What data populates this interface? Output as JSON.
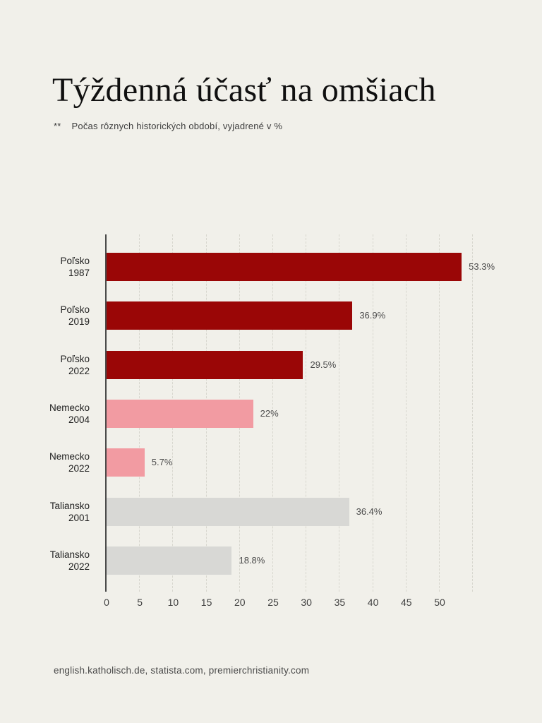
{
  "page": {
    "background": "#f1f0ea",
    "title": "Týždenná účasť na omšiach",
    "footnote_marker": "**",
    "footnote_text": "Počas rôznych historických období, vyjadrené v %",
    "sources": "english.katholisch.de, statista.com, premierchristianity.com"
  },
  "chart_data": {
    "type": "bar",
    "orientation": "horizontal",
    "title": "Týždenná účasť na omšiach",
    "subtitle": "Počas rôznych historických období, vyjadrené v %",
    "value_suffix": "%",
    "xlim": [
      0,
      55
    ],
    "x_ticks": [
      0,
      5,
      10,
      15,
      20,
      25,
      30,
      35,
      40,
      45,
      50
    ],
    "grid_ticks": [
      5,
      10,
      15,
      20,
      25,
      30,
      35,
      40,
      45,
      50,
      55
    ],
    "grid": "dashed-vertical",
    "legend_position": "none",
    "colors": {
      "polsko_dark_red": "#9a0606",
      "nemecko_pink": "#f29ba2",
      "taliansko_gray": "#d8d8d5"
    },
    "items": [
      {
        "country": "Poľsko",
        "year": "1987",
        "value": 53.3,
        "value_label": "53.3%",
        "color": "#9a0606"
      },
      {
        "country": "Poľsko",
        "year": "2019",
        "value": 36.9,
        "value_label": "36.9%",
        "color": "#9a0606"
      },
      {
        "country": "Poľsko",
        "year": "2022",
        "value": 29.5,
        "value_label": "29.5%",
        "color": "#9a0606"
      },
      {
        "country": "Nemecko",
        "year": "2004",
        "value": 22,
        "value_label": "22%",
        "color": "#f29ba2"
      },
      {
        "country": "Nemecko",
        "year": "2022",
        "value": 5.7,
        "value_label": "5.7%",
        "color": "#f29ba2"
      },
      {
        "country": "Taliansko",
        "year": "2001",
        "value": 36.4,
        "value_label": "36.4%",
        "color": "#d8d8d5"
      },
      {
        "country": "Taliansko",
        "year": "2022",
        "value": 18.8,
        "value_label": "18.8%",
        "color": "#d8d8d5"
      }
    ]
  }
}
